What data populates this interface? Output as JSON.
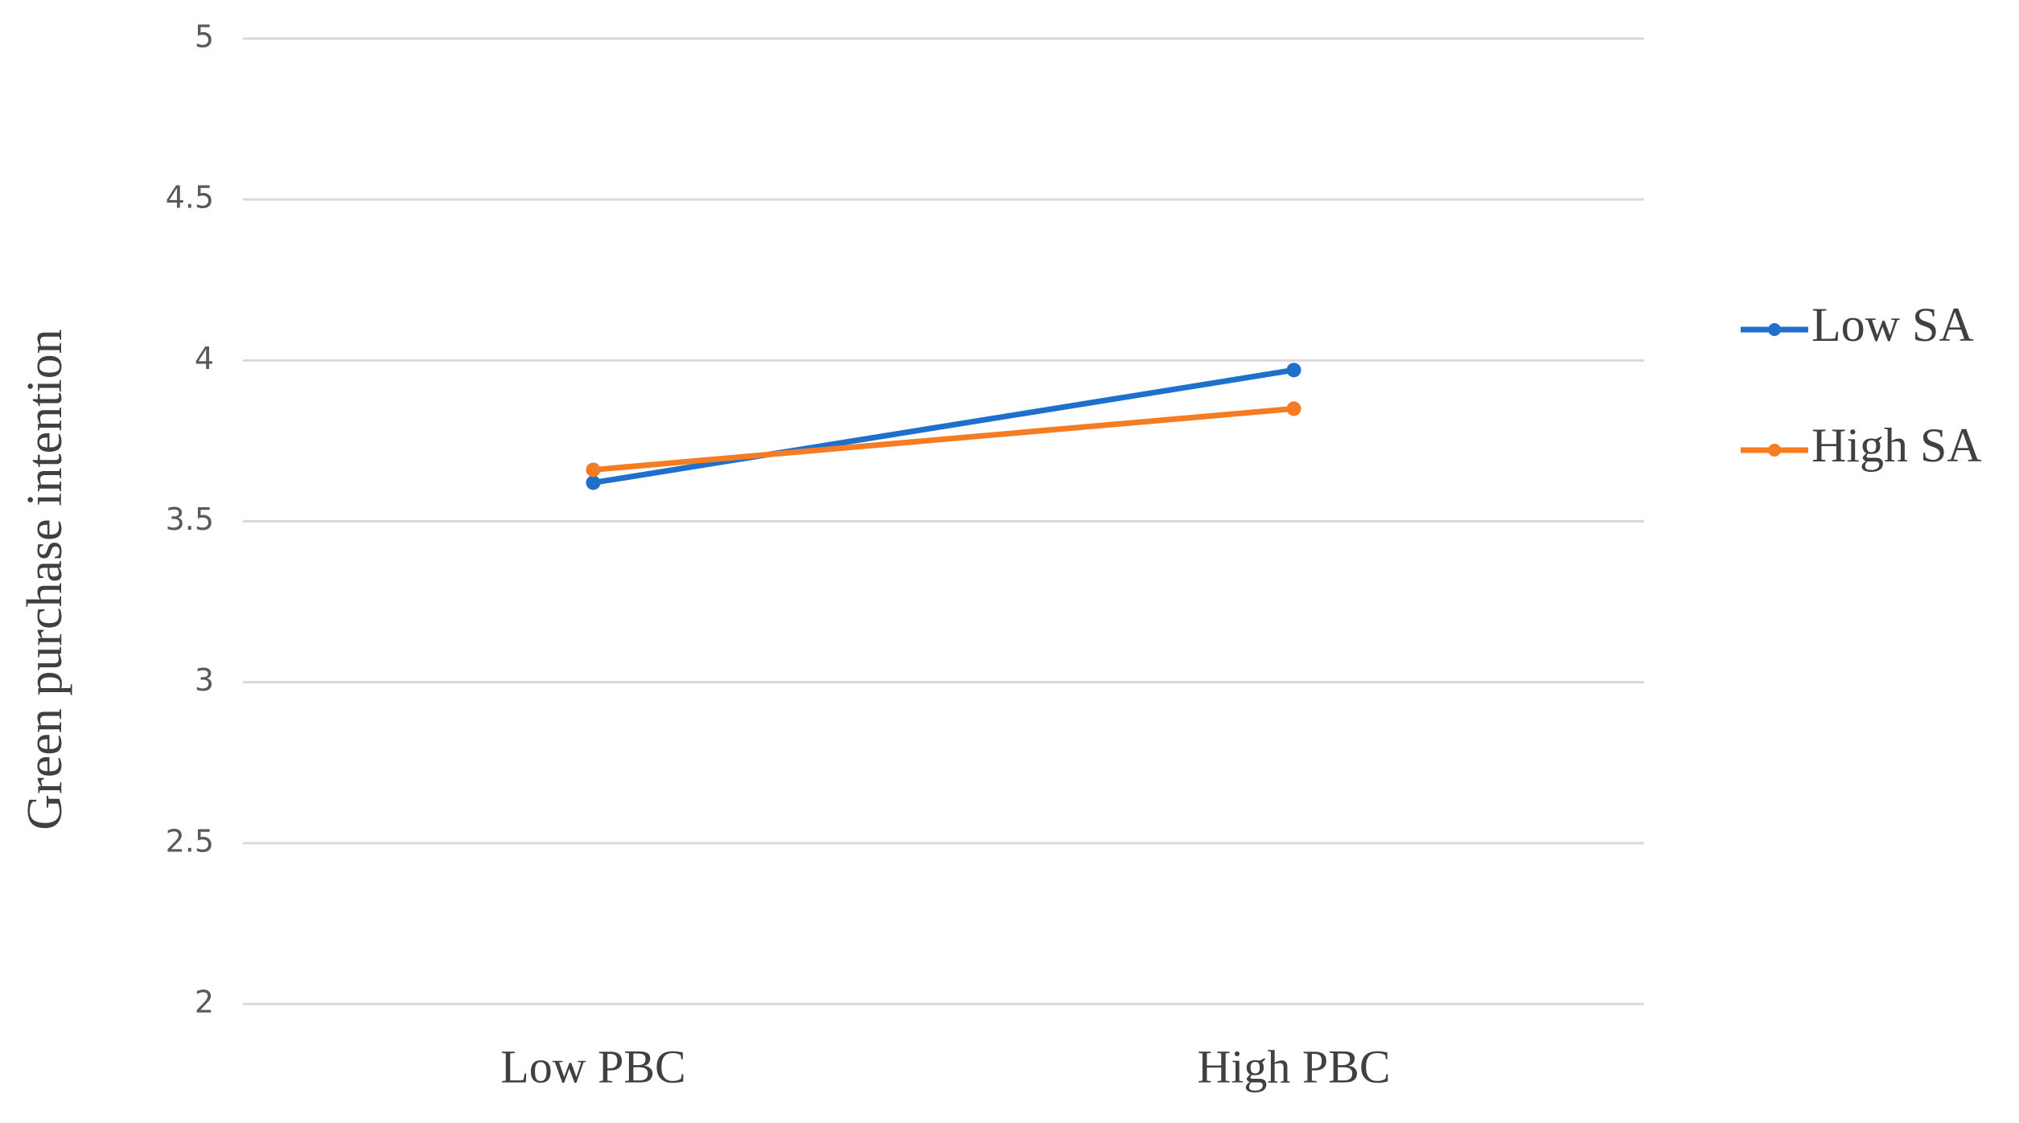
{
  "chart_data": {
    "type": "line",
    "y_label": "Green purchase intention",
    "categories": [
      "Low PBC",
      "High PBC"
    ],
    "series": [
      {
        "name": "Low SA",
        "color": "#1f6fcc",
        "values": [
          3.62,
          3.97
        ]
      },
      {
        "name": "High SA",
        "color": "#f57c22",
        "values": [
          3.66,
          3.85
        ]
      }
    ],
    "ylim": [
      2,
      5
    ],
    "yticks": [
      2,
      2.5,
      3,
      3.5,
      4,
      4.5,
      5
    ],
    "grid": true,
    "legend": "right"
  }
}
